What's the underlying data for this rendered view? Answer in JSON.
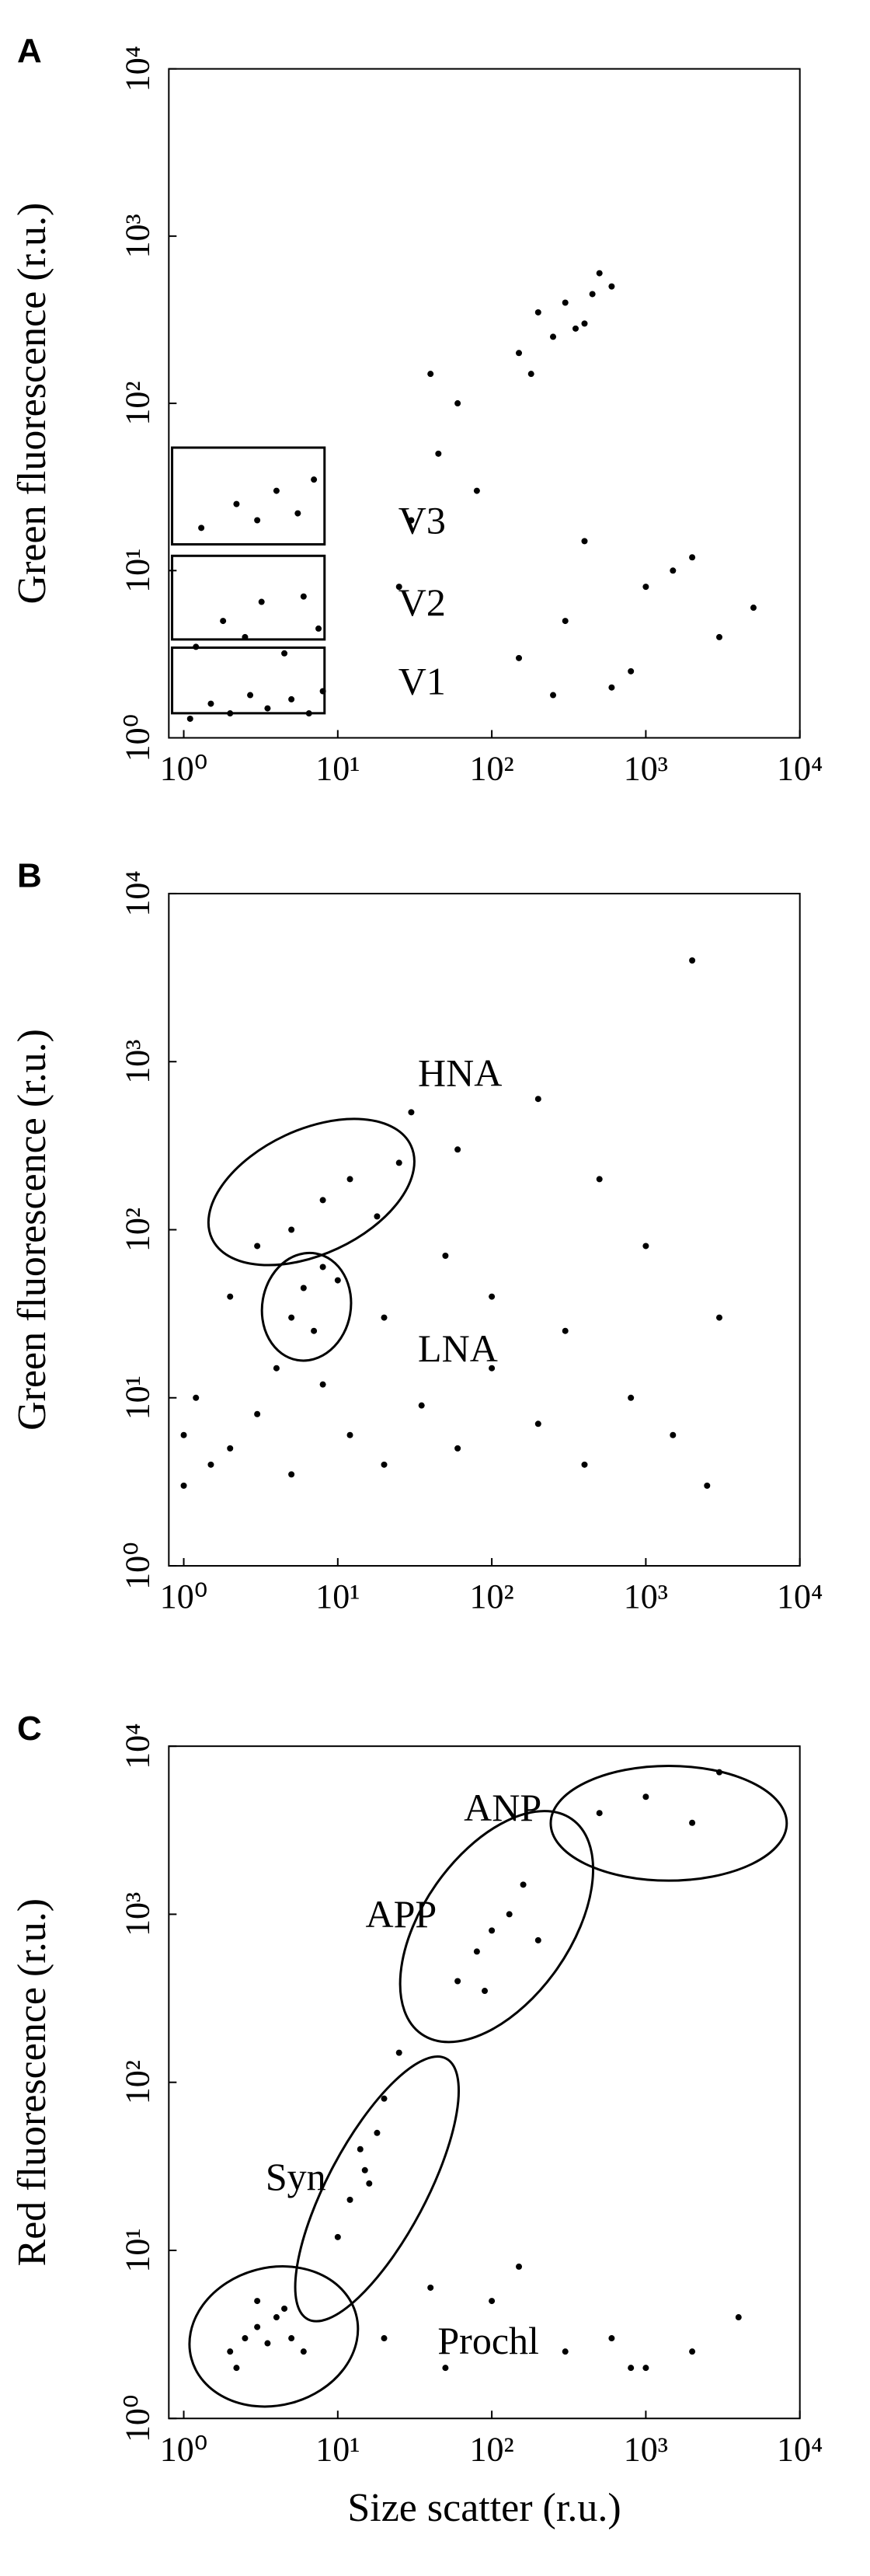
{
  "chart_data": [
    {
      "type": "scatter",
      "panel_label": "A",
      "y_label": "Green fluorescence (r.u.)",
      "xscale": "log",
      "yscale": "log",
      "color": "#000000",
      "xlim": [
        0.8,
        10000
      ],
      "ylim": [
        1,
        10000
      ],
      "xticks": [
        {
          "value": 1,
          "label": "10⁰"
        },
        {
          "value": 10,
          "label": "10¹"
        },
        {
          "value": 100,
          "label": "10²"
        },
        {
          "value": 1000,
          "label": "10³"
        },
        {
          "value": 10000,
          "label": "10⁴"
        }
      ],
      "yticks": [
        {
          "value": 1,
          "label": "10⁰"
        },
        {
          "value": 10,
          "label": "10¹"
        },
        {
          "value": 100,
          "label": "10²"
        },
        {
          "value": 1000,
          "label": "10³"
        },
        {
          "value": 10000,
          "label": "10⁴"
        }
      ],
      "annotations": [
        "V3",
        "V2",
        "V1"
      ],
      "x": [
        1.1,
        1.5,
        2,
        2.7,
        3.5,
        5,
        6.5,
        8,
        1.2,
        1.8,
        2.5,
        3.2,
        4.5,
        6,
        7.5,
        1.3,
        2.2,
        3,
        4,
        5.5,
        7,
        150,
        200,
        250,
        300,
        400,
        500,
        600,
        180,
        350,
        450,
        30,
        45,
        60,
        80,
        40,
        25,
        150,
        300,
        600,
        1000,
        2000,
        3000,
        5000,
        400,
        800,
        1500,
        250
      ],
      "y": [
        1.3,
        1.6,
        1.4,
        1.8,
        1.5,
        1.7,
        1.4,
        1.9,
        3.5,
        5,
        4,
        6.5,
        3.2,
        7,
        4.5,
        18,
        25,
        20,
        30,
        22,
        35,
        200,
        350,
        250,
        400,
        300,
        600,
        500,
        150,
        280,
        450,
        20,
        50,
        100,
        30,
        150,
        8,
        3,
        5,
        2,
        8,
        12,
        4,
        6,
        15,
        2.5,
        10,
        1.8
      ]
    },
    {
      "type": "scatter",
      "panel_label": "B",
      "y_label": "Green fluorescence (r.u.)",
      "xscale": "log",
      "yscale": "log",
      "color": "#000000",
      "xlim": [
        0.8,
        10000
      ],
      "ylim": [
        1,
        10000
      ],
      "xticks": [
        {
          "value": 1,
          "label": "10⁰"
        },
        {
          "value": 10,
          "label": "10¹"
        },
        {
          "value": 100,
          "label": "10²"
        },
        {
          "value": 1000,
          "label": "10³"
        },
        {
          "value": 10000,
          "label": "10⁴"
        }
      ],
      "yticks": [
        {
          "value": 1,
          "label": "10⁰"
        },
        {
          "value": 10,
          "label": "10¹"
        },
        {
          "value": 100,
          "label": "10²"
        },
        {
          "value": 1000,
          "label": "10³"
        },
        {
          "value": 10000,
          "label": "10⁴"
        }
      ],
      "annotations": [
        "HNA",
        "LNA"
      ],
      "x": [
        1,
        1,
        1.2,
        1.5,
        2,
        3,
        5,
        8,
        12,
        20,
        35,
        60,
        100,
        200,
        400,
        800,
        1500,
        2500,
        3,
        5,
        8,
        12,
        18,
        25,
        5,
        6,
        7,
        8,
        2,
        4,
        10,
        20,
        50,
        100,
        300,
        1000,
        3000,
        30,
        60,
        200,
        500,
        2000
      ],
      "y": [
        3,
        6,
        10,
        4,
        5,
        8,
        3.5,
        12,
        6,
        4,
        9,
        5,
        15,
        7,
        4,
        10,
        6,
        3,
        80,
        100,
        150,
        200,
        120,
        250,
        30,
        45,
        25,
        60,
        40,
        15,
        50,
        30,
        70,
        40,
        25,
        80,
        30,
        500,
        300,
        600,
        200,
        4000
      ]
    },
    {
      "type": "scatter",
      "panel_label": "C",
      "y_label": "Red fluorescence (r.u.)",
      "x_label": "Size scatter (r.u.)",
      "xscale": "log",
      "yscale": "log",
      "color": "#000000",
      "xlim": [
        0.8,
        10000
      ],
      "ylim": [
        1,
        10000
      ],
      "xticks": [
        {
          "value": 1,
          "label": "10⁰"
        },
        {
          "value": 10,
          "label": "10¹"
        },
        {
          "value": 100,
          "label": "10²"
        },
        {
          "value": 1000,
          "label": "10³"
        },
        {
          "value": 10000,
          "label": "10⁴"
        }
      ],
      "yticks": [
        {
          "value": 1,
          "label": "10⁰"
        },
        {
          "value": 10,
          "label": "10¹"
        },
        {
          "value": 100,
          "label": "10²"
        },
        {
          "value": 1000,
          "label": "10³"
        },
        {
          "value": 10000,
          "label": "10⁴"
        }
      ],
      "annotations": [
        "ANP",
        "APP",
        "Syn",
        "Prochl"
      ],
      "x": [
        2,
        2.5,
        3,
        3.5,
        4,
        5,
        6,
        3,
        4.5,
        2.2,
        10,
        12,
        15,
        18,
        20,
        25,
        14,
        16,
        60,
        80,
        100,
        130,
        160,
        200,
        90,
        500,
        1000,
        2000,
        3000,
        20,
        50,
        100,
        300,
        600,
        1000,
        2000,
        4000,
        40,
        150,
        800
      ],
      "y": [
        2.5,
        3,
        3.5,
        2.8,
        4,
        3,
        2.5,
        5,
        4.5,
        2,
        12,
        20,
        30,
        50,
        80,
        150,
        40,
        25,
        400,
        600,
        800,
        1000,
        1500,
        700,
        350,
        4000,
        5000,
        3500,
        7000,
        3,
        2,
        5,
        2.5,
        3,
        2,
        2.5,
        4,
        6,
        8,
        2
      ]
    }
  ]
}
